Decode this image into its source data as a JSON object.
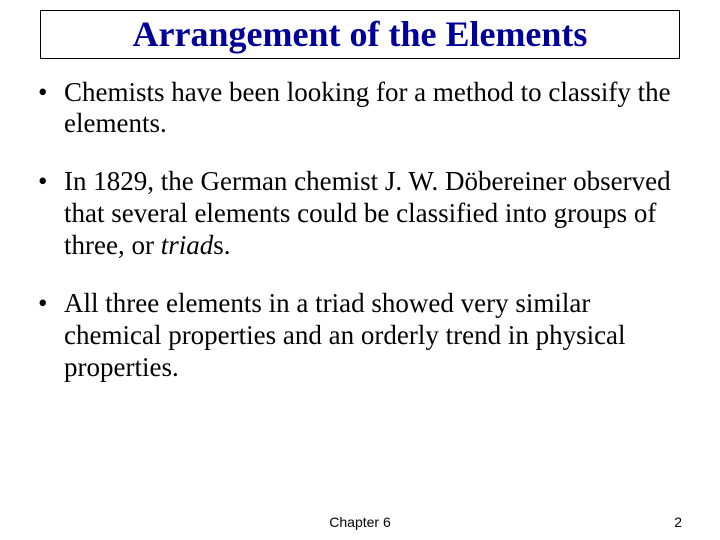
{
  "title": "Arrangement of the Elements",
  "title_color": "#000099",
  "title_fontsize": 36,
  "title_border_color": "#000000",
  "body_fontsize": 27,
  "body_color": "#000000",
  "background_color": "#ffffff",
  "bullets": [
    {
      "text_pre": "Chemists have been looking for a method to classify the elements.",
      "italic": "",
      "text_post": ""
    },
    {
      "text_pre": "In 1829, the German chemist J. W. Döbereiner observed that several elements could be classified into groups of three, or ",
      "italic": "triad",
      "text_post": "s."
    },
    {
      "text_pre": "All three elements in a triad showed very similar chemical properties and an orderly trend in physical properties.",
      "italic": "",
      "text_post": ""
    }
  ],
  "footer": {
    "chapter": "Chapter 6",
    "page": "2",
    "fontsize": 14
  }
}
